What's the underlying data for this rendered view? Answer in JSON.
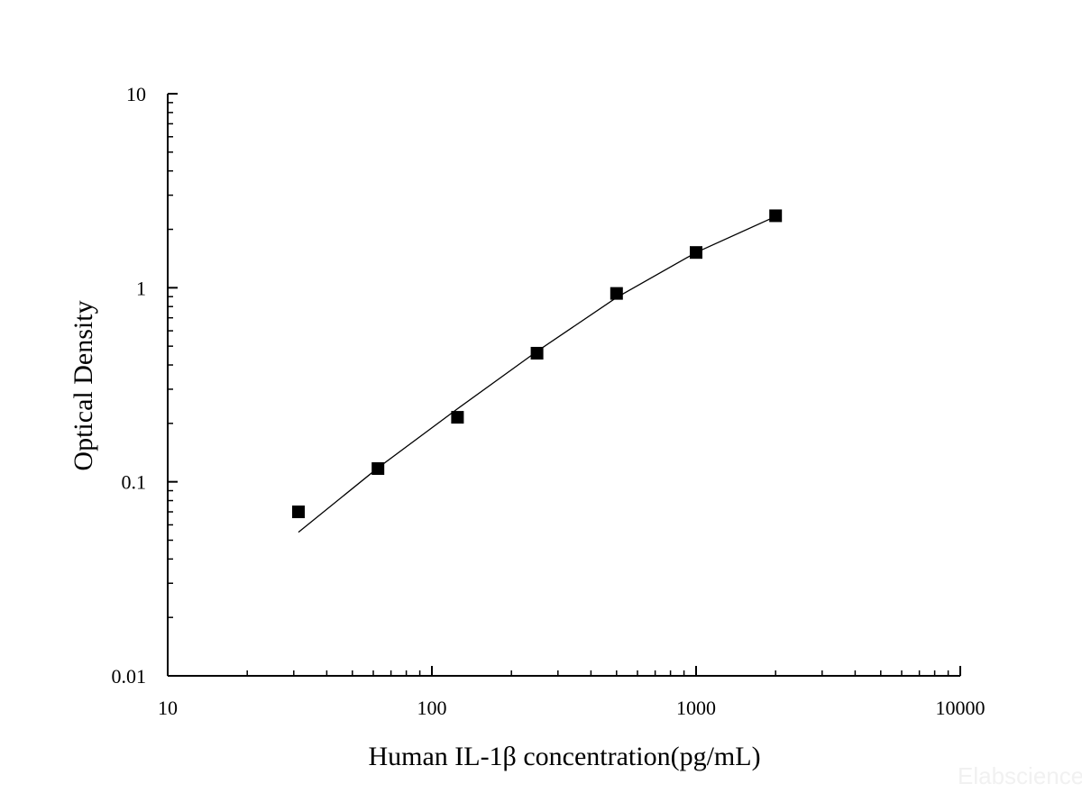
{
  "chart_data": {
    "type": "scatter",
    "xlabel": "Human IL-1β concentration(pg/mL)",
    "ylabel": "Optical Density",
    "x_scale": "log",
    "y_scale": "log",
    "xlim": [
      10,
      10000
    ],
    "ylim": [
      0.01,
      10
    ],
    "x_ticks": [
      "10",
      "100",
      "1000",
      "10000"
    ],
    "y_ticks": [
      "0.01",
      "0.1",
      "1",
      "10"
    ],
    "grid": false,
    "marker_color": "#000000",
    "line_color": "#000000",
    "series": [
      {
        "type": "scatter",
        "marker": "square",
        "x": [
          31.25,
          62.5,
          125,
          250,
          500,
          1000,
          2000
        ],
        "y": [
          0.07,
          0.117,
          0.215,
          0.46,
          0.935,
          1.52,
          2.35
        ]
      },
      {
        "type": "line",
        "x": [
          31.25,
          62.5,
          125,
          250,
          500,
          1000,
          2000
        ],
        "y": [
          0.055,
          0.118,
          0.238,
          0.47,
          0.89,
          1.52,
          2.33
        ]
      }
    ]
  },
  "watermark": "Elabscience"
}
